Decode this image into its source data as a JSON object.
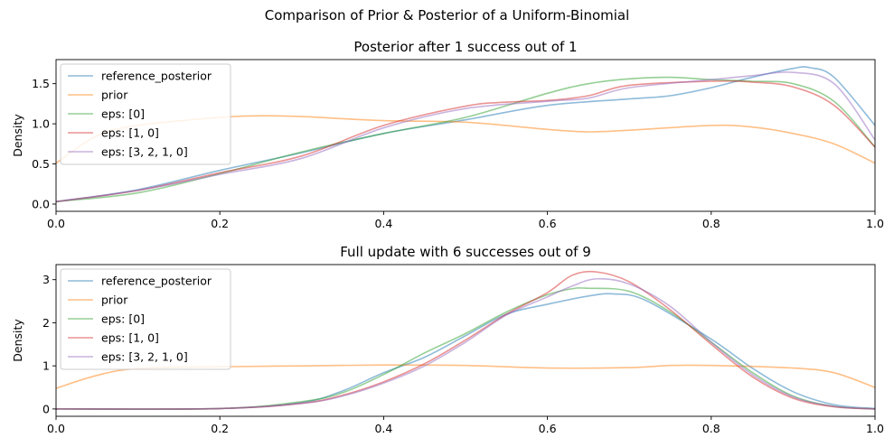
{
  "figure_title": "Comparison of Prior & Posterior of a Uniform-Binomial",
  "colors": {
    "reference_posterior": "#1f77b4",
    "prior": "#ff7f0e",
    "eps_0": "#2ca02c",
    "eps_1_0": "#d62728",
    "eps_3_2_1_0": "#9467bd"
  },
  "chart_data": [
    {
      "type": "line",
      "title": "Posterior after 1 success out of 1",
      "xlabel": "",
      "ylabel": "Density",
      "xlim": [
        0.0,
        1.0
      ],
      "ylim": [
        -0.09,
        1.8
      ],
      "xticks": [
        0.0,
        0.2,
        0.4,
        0.6,
        0.8,
        1.0
      ],
      "xtick_labels": [
        "0.0",
        "0.2",
        "0.4",
        "0.6",
        "0.8",
        "1.0"
      ],
      "yticks": [
        0.0,
        0.5,
        1.0,
        1.5
      ],
      "ytick_labels": [
        "0.0",
        "0.5",
        "1.0",
        "1.5"
      ],
      "grid": false,
      "legend_position": "upper-left",
      "series": [
        {
          "name": "reference_posterior",
          "color": "#1f77b4",
          "x": [
            0.0,
            0.1,
            0.2,
            0.3,
            0.4,
            0.5,
            0.6,
            0.7,
            0.75,
            0.8,
            0.85,
            0.9,
            0.92,
            0.95,
            1.0
          ],
          "y": [
            0.03,
            0.18,
            0.42,
            0.64,
            0.88,
            1.05,
            1.23,
            1.31,
            1.35,
            1.45,
            1.58,
            1.69,
            1.7,
            1.58,
            0.98
          ]
        },
        {
          "name": "prior",
          "color": "#ff7f0e",
          "x": [
            0.0,
            0.05,
            0.1,
            0.2,
            0.25,
            0.3,
            0.4,
            0.5,
            0.6,
            0.65,
            0.7,
            0.8,
            0.85,
            0.9,
            0.95,
            1.0
          ],
          "y": [
            0.51,
            0.85,
            0.98,
            1.08,
            1.1,
            1.09,
            1.04,
            1.02,
            0.93,
            0.9,
            0.92,
            0.98,
            0.96,
            0.88,
            0.75,
            0.51
          ]
        },
        {
          "name": "eps: [0]",
          "color": "#2ca02c",
          "x": [
            0.0,
            0.1,
            0.2,
            0.3,
            0.4,
            0.5,
            0.6,
            0.65,
            0.7,
            0.75,
            0.8,
            0.85,
            0.9,
            0.95,
            1.0
          ],
          "y": [
            0.03,
            0.14,
            0.38,
            0.65,
            0.88,
            1.08,
            1.38,
            1.5,
            1.56,
            1.58,
            1.55,
            1.53,
            1.5,
            1.28,
            0.71
          ]
        },
        {
          "name": "eps: [1, 0]",
          "color": "#d62728",
          "x": [
            0.0,
            0.1,
            0.2,
            0.3,
            0.4,
            0.5,
            0.55,
            0.6,
            0.65,
            0.7,
            0.8,
            0.85,
            0.9,
            0.95,
            1.0
          ],
          "y": [
            0.03,
            0.17,
            0.39,
            0.6,
            0.98,
            1.22,
            1.27,
            1.29,
            1.35,
            1.48,
            1.53,
            1.52,
            1.46,
            1.23,
            0.71
          ]
        },
        {
          "name": "eps: [3, 2, 1, 0]",
          "color": "#9467bd",
          "x": [
            0.0,
            0.1,
            0.2,
            0.3,
            0.4,
            0.5,
            0.6,
            0.65,
            0.7,
            0.8,
            0.85,
            0.9,
            0.95,
            1.0
          ],
          "y": [
            0.03,
            0.17,
            0.37,
            0.57,
            0.95,
            1.19,
            1.28,
            1.32,
            1.45,
            1.55,
            1.6,
            1.64,
            1.5,
            0.8
          ]
        }
      ]
    },
    {
      "type": "line",
      "title": "Full update with 6 successes out of 9",
      "xlabel": "",
      "ylabel": "Density",
      "xlim": [
        0.0,
        1.0
      ],
      "ylim": [
        -0.17,
        3.35
      ],
      "xticks": [
        0.0,
        0.2,
        0.4,
        0.6,
        0.8,
        1.0
      ],
      "xtick_labels": [
        "0.0",
        "0.2",
        "0.4",
        "0.6",
        "0.8",
        "1.0"
      ],
      "yticks": [
        0,
        1,
        2,
        3
      ],
      "ytick_labels": [
        "0",
        "1",
        "2",
        "3"
      ],
      "grid": false,
      "legend_position": "upper-left",
      "series": [
        {
          "name": "reference_posterior",
          "color": "#1f77b4",
          "x": [
            0.0,
            0.2,
            0.3,
            0.35,
            0.4,
            0.45,
            0.5,
            0.55,
            0.6,
            0.65,
            0.68,
            0.72,
            0.8,
            0.85,
            0.9,
            0.95,
            1.0
          ],
          "y": [
            0.0,
            0.01,
            0.15,
            0.42,
            0.84,
            1.2,
            1.7,
            2.2,
            2.43,
            2.62,
            2.67,
            2.52,
            1.62,
            0.95,
            0.4,
            0.1,
            0.01
          ]
        },
        {
          "name": "prior",
          "color": "#ff7f0e",
          "x": [
            0.0,
            0.05,
            0.1,
            0.2,
            0.3,
            0.4,
            0.5,
            0.6,
            0.7,
            0.75,
            0.8,
            0.9,
            0.95,
            1.0
          ],
          "y": [
            0.48,
            0.78,
            0.94,
            0.98,
            1.0,
            1.02,
            1.01,
            0.95,
            0.96,
            1.01,
            1.01,
            0.95,
            0.84,
            0.5
          ]
        },
        {
          "name": "eps: [0]",
          "color": "#2ca02c",
          "x": [
            0.0,
            0.2,
            0.3,
            0.35,
            0.4,
            0.45,
            0.5,
            0.55,
            0.6,
            0.63,
            0.65,
            0.7,
            0.75,
            0.8,
            0.85,
            0.9,
            0.95,
            1.0
          ],
          "y": [
            0.0,
            0.01,
            0.17,
            0.38,
            0.8,
            1.3,
            1.75,
            2.25,
            2.65,
            2.79,
            2.8,
            2.73,
            2.25,
            1.55,
            0.85,
            0.3,
            0.06,
            0.0
          ]
        },
        {
          "name": "eps: [1, 0]",
          "color": "#d62728",
          "x": [
            0.0,
            0.2,
            0.3,
            0.35,
            0.4,
            0.45,
            0.5,
            0.55,
            0.6,
            0.63,
            0.66,
            0.7,
            0.75,
            0.8,
            0.85,
            0.9,
            0.95,
            1.0
          ],
          "y": [
            0.0,
            0.01,
            0.13,
            0.32,
            0.63,
            1.05,
            1.6,
            2.2,
            2.7,
            3.1,
            3.18,
            2.95,
            2.3,
            1.5,
            0.75,
            0.25,
            0.05,
            0.0
          ]
        },
        {
          "name": "eps: [3, 2, 1, 0]",
          "color": "#9467bd",
          "x": [
            0.0,
            0.2,
            0.3,
            0.35,
            0.4,
            0.45,
            0.5,
            0.55,
            0.6,
            0.63,
            0.66,
            0.7,
            0.75,
            0.8,
            0.85,
            0.9,
            0.95,
            1.0
          ],
          "y": [
            0.0,
            0.01,
            0.13,
            0.3,
            0.6,
            1.0,
            1.55,
            2.18,
            2.6,
            2.85,
            3.02,
            2.9,
            2.38,
            1.55,
            0.8,
            0.28,
            0.06,
            0.0
          ]
        }
      ]
    }
  ]
}
